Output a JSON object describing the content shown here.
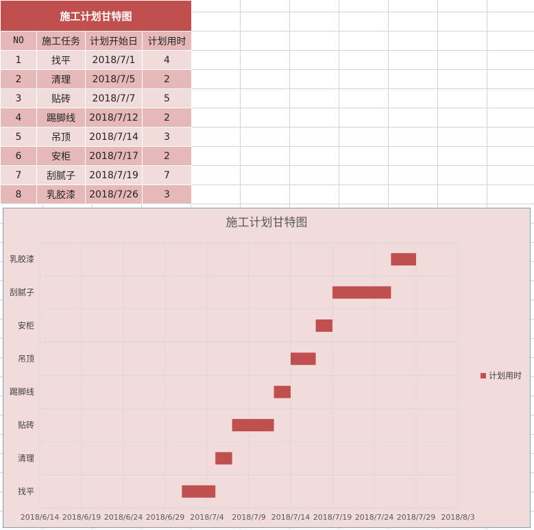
{
  "sheet": {
    "title": "施工计划甘特图",
    "headers": [
      "NO",
      "施工任务",
      "计划开始日",
      "计划用时"
    ],
    "rows": [
      {
        "no": "1",
        "task": "找平",
        "start": "2018/7/1",
        "duration": "4"
      },
      {
        "no": "2",
        "task": "清理",
        "start": "2018/7/5",
        "duration": "2"
      },
      {
        "no": "3",
        "task": "贴砖",
        "start": "2018/7/7",
        "duration": "5"
      },
      {
        "no": "4",
        "task": "踢脚线",
        "start": "2018/7/12",
        "duration": "2"
      },
      {
        "no": "5",
        "task": "吊顶",
        "start": "2018/7/14",
        "duration": "3"
      },
      {
        "no": "6",
        "task": "安柜",
        "start": "2018/7/17",
        "duration": "2"
      },
      {
        "no": "7",
        "task": "刮腻子",
        "start": "2018/7/19",
        "duration": "7"
      },
      {
        "no": "8",
        "task": "乳胶漆",
        "start": "2018/7/26",
        "duration": "3"
      }
    ]
  },
  "colors": {
    "title_bg": "#c0504d",
    "header_bg": "#e6b9b8",
    "row_light": "#f2dcdb",
    "row_dark": "#e6b9b8",
    "bar": "#c0504d",
    "chart_bg": "#f2dcdb"
  },
  "chart_data": {
    "type": "bar",
    "orientation": "horizontal",
    "title": "施工计划甘特图",
    "categories": [
      "找平",
      "清理",
      "贴砖",
      "踢脚线",
      "吊顶",
      "安柜",
      "刮腻子",
      "乳胶漆"
    ],
    "series": [
      {
        "name": "计划用时",
        "start": [
          "2018/7/1",
          "2018/7/5",
          "2018/7/7",
          "2018/7/12",
          "2018/7/14",
          "2018/7/17",
          "2018/7/19",
          "2018/7/26"
        ],
        "values": [
          4,
          2,
          5,
          2,
          3,
          2,
          7,
          3
        ]
      }
    ],
    "x_axis": {
      "ticks": [
        "2018/6/14",
        "2018/6/19",
        "2018/6/24",
        "2018/6/29",
        "2018/7/4",
        "2018/7/9",
        "2018/7/14",
        "2018/7/19",
        "2018/7/24",
        "2018/7/29",
        "2018/8/3"
      ],
      "range": [
        "2018/6/14",
        "2018/8/3"
      ],
      "tick_interval_days": 5
    },
    "grid": true,
    "legend": "right"
  }
}
